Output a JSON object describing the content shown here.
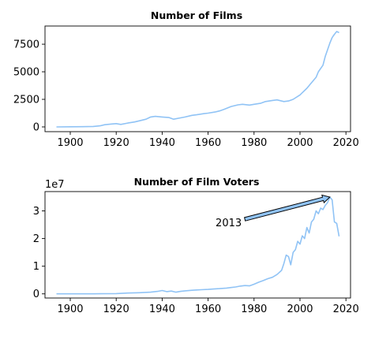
{
  "chart_data": [
    {
      "type": "line",
      "title": "Number of Films",
      "xlabel": "",
      "ylabel": "",
      "xlim": [
        1889,
        2022
      ],
      "ylim": [
        -430,
        9150
      ],
      "xticks": [
        1900,
        1920,
        1940,
        1960,
        1980,
        2000,
        2020
      ],
      "yticks": [
        0,
        2500,
        5000,
        7500
      ],
      "ytick_labels": [
        "0",
        "2500",
        "5000",
        "7500"
      ],
      "y_offset_label": "",
      "line_color": "#90c3f5",
      "grid": false,
      "legend": "none",
      "series": [
        {
          "x": [
            1894,
            1900,
            1905,
            1910,
            1913,
            1915,
            1918,
            1920,
            1922,
            1925,
            1928,
            1930,
            1933,
            1935,
            1937,
            1940,
            1943,
            1945,
            1948,
            1950,
            1953,
            1955,
            1958,
            1960,
            1963,
            1965,
            1967,
            1970,
            1973,
            1975,
            1978,
            1980,
            1983,
            1985,
            1988,
            1990,
            1993,
            1995,
            1997,
            2000,
            2003,
            2005,
            2007,
            2008,
            2010,
            2011,
            2012,
            2013,
            2014,
            2015,
            2016,
            2017
          ],
          "y": [
            0,
            10,
            20,
            40,
            100,
            200,
            260,
            300,
            230,
            350,
            450,
            550,
            700,
            900,
            960,
            900,
            850,
            700,
            820,
            900,
            1050,
            1100,
            1200,
            1250,
            1350,
            1450,
            1600,
            1850,
            2000,
            2050,
            1980,
            2050,
            2150,
            2300,
            2400,
            2450,
            2300,
            2350,
            2500,
            2900,
            3500,
            4000,
            4500,
            5000,
            5600,
            6400,
            7000,
            7600,
            8100,
            8400,
            8650,
            8550
          ]
        }
      ]
    },
    {
      "type": "line",
      "title": "Number of Film Voters",
      "xlabel": "",
      "ylabel": "",
      "xlim": [
        1889,
        2022
      ],
      "ylim": [
        -1500000.0,
        37000000.0
      ],
      "xticks": [
        1900,
        1920,
        1940,
        1960,
        1980,
        2000,
        2020
      ],
      "yticks": [
        0,
        10000000.0,
        20000000.0,
        30000000.0
      ],
      "ytick_labels": [
        "0",
        "1",
        "2",
        "3"
      ],
      "y_offset_label": "1e7",
      "line_color": "#90c3f5",
      "grid": false,
      "legend": "none",
      "annotation": {
        "text": "2013",
        "x": 2013,
        "y": 35000000.0,
        "text_x": 1976,
        "text_y": 27000000.0
      },
      "series": [
        {
          "x": [
            1894,
            1900,
            1910,
            1920,
            1925,
            1930,
            1935,
            1938,
            1940,
            1942,
            1944,
            1946,
            1948,
            1950,
            1953,
            1955,
            1957,
            1960,
            1963,
            1965,
            1968,
            1970,
            1972,
            1974,
            1976,
            1978,
            1980,
            1982,
            1984,
            1986,
            1988,
            1990,
            1992,
            1993,
            1994,
            1995,
            1996,
            1997,
            1998,
            1999,
            2000,
            2001,
            2002,
            2003,
            2004,
            2005,
            2006,
            2007,
            2008,
            2009,
            2010,
            2011,
            2012,
            2013,
            2014,
            2015,
            2016,
            2017
          ],
          "y": [
            0,
            0,
            0,
            100000,
            300000,
            400000,
            600000,
            900000,
            1200000,
            800000,
            1000000,
            600000,
            900000,
            1100000,
            1300000,
            1400000,
            1500000,
            1600000,
            1800000,
            1900000,
            2100000,
            2300000,
            2500000,
            2800000,
            3000000,
            2900000,
            3500000,
            4200000,
            4800000,
            5500000,
            6000000,
            7000000,
            8500000,
            11000000,
            14000000,
            13500000,
            10500000,
            15000000,
            16000000,
            19000000,
            18000000,
            21000000,
            20000000,
            24000000,
            22000000,
            26000000,
            27000000,
            30000000,
            29000000,
            31000000,
            30500000,
            32000000,
            33000000,
            35000000,
            34000000,
            26000000,
            25500000,
            20800000
          ]
        }
      ]
    }
  ]
}
